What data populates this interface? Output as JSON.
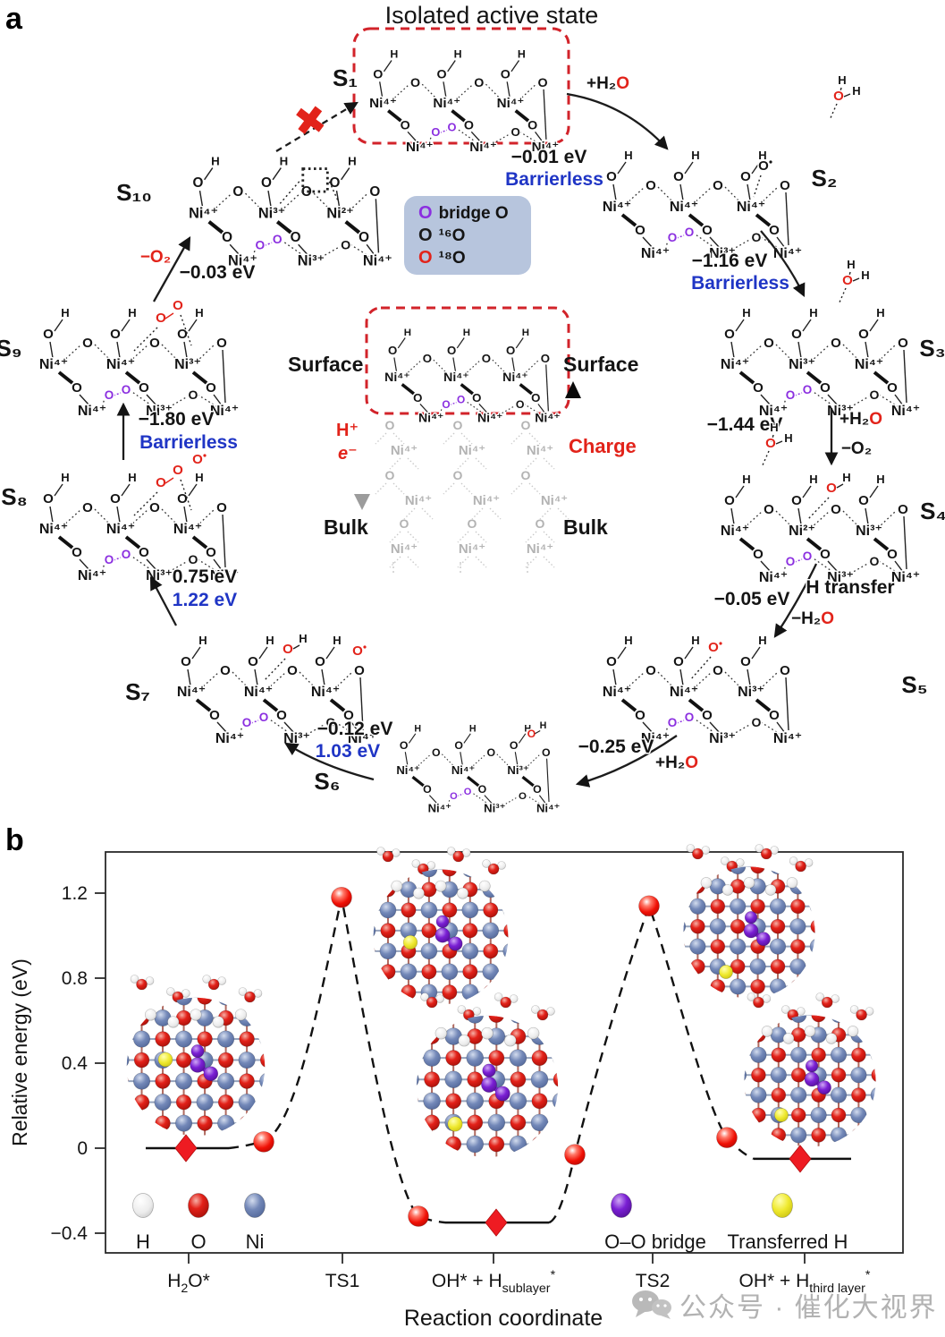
{
  "figure": {
    "panel_a_label": "a",
    "panel_b_label": "b"
  },
  "panel_a": {
    "title": "Isolated active state",
    "blocked_icon": "✖",
    "oxygen_glyph": "O",
    "hydrogen_glyph": "H",
    "bridge_oo_glyph": [
      "O",
      "O"
    ],
    "states": [
      {
        "label": "S₁",
        "top": [
          "Ni⁴⁺",
          "Ni⁴⁺",
          "Ni⁴⁺"
        ],
        "bottom": [
          "Ni⁴⁺",
          "Ni⁴⁺",
          "Ni⁴⁺"
        ],
        "boxed": true,
        "extras": []
      },
      {
        "label": "S₂",
        "top": [
          "Ni⁴⁺",
          "Ni⁴⁺",
          "Ni⁴⁺"
        ],
        "bottom": [
          "Ni⁴⁺",
          "Ni³⁺",
          "Ni⁴⁺"
        ],
        "extras": [
          "radical-o"
        ]
      },
      {
        "label": "S₃",
        "top": [
          "Ni⁴⁺",
          "Ni³⁺",
          "Ni⁴⁺"
        ],
        "bottom": [
          "Ni⁴⁺",
          "Ni³⁺",
          "Ni⁴⁺"
        ],
        "extras": []
      },
      {
        "label": "S₄",
        "top": [
          "Ni⁴⁺",
          "Ni²⁺",
          "Ni³⁺"
        ],
        "bottom": [
          "Ni⁴⁺",
          "Ni³⁺",
          "Ni⁴⁺"
        ],
        "extras": [
          "red-oh-mid"
        ]
      },
      {
        "label": "S₅",
        "top": [
          "Ni⁴⁺",
          "Ni⁴⁺",
          "Ni³⁺"
        ],
        "bottom": [
          "Ni⁴⁺",
          "Ni³⁺",
          "Ni⁴⁺"
        ],
        "extras": [
          "red-o-mid"
        ]
      },
      {
        "label": "S₆",
        "top": [
          "Ni⁴⁺",
          "Ni⁴⁺",
          "Ni³⁺"
        ],
        "bottom": [
          "Ni⁴⁺",
          "Ni³⁺",
          "Ni⁴⁺"
        ],
        "extras": [
          "red-oh-right"
        ]
      },
      {
        "label": "S₇",
        "top": [
          "Ni⁴⁺",
          "Ni⁴⁺",
          "Ni⁴⁺"
        ],
        "bottom": [
          "Ni⁴⁺",
          "Ni³⁺",
          "Ni⁴⁺"
        ],
        "extras": [
          "red-oh-mid",
          "red-o-right"
        ]
      },
      {
        "label": "S₈",
        "top": [
          "Ni⁴⁺",
          "Ni⁴⁺",
          "Ni⁴⁺"
        ],
        "bottom": [
          "Ni⁴⁺",
          "Ni³⁺",
          "Ni⁴⁺"
        ],
        "extras": [
          "red-oo",
          "red-o-above"
        ]
      },
      {
        "label": "S₉",
        "top": [
          "Ni⁴⁺",
          "Ni⁴⁺",
          "Ni³⁺"
        ],
        "bottom": [
          "Ni⁴⁺",
          "Ni³⁺",
          "Ni⁴⁺"
        ],
        "extras": [
          "red-oo"
        ]
      },
      {
        "label": "S₁₀",
        "top": [
          "Ni⁴⁺",
          "Ni³⁺",
          "Ni²⁺"
        ],
        "bottom": [
          "Ni⁴⁺",
          "Ni³⁺",
          "Ni⁴⁺"
        ],
        "extras": [
          "vacancy"
        ]
      }
    ],
    "transitions": [
      {
        "from": "S₁",
        "to": "S₂",
        "reagent": [
          {
            "t": "+H₂"
          },
          {
            "t": "O",
            "color": "#e2231a"
          }
        ],
        "energy": "−0.01 eV",
        "note": "Barrierless"
      },
      {
        "from": "S₂",
        "to": "S₃",
        "energy": "−1.16 eV",
        "note": "Barrierless"
      },
      {
        "from": "S₃",
        "to": "S₄",
        "energy": "−1.44 eV",
        "reagent": [
          {
            "t": "+H₂"
          },
          {
            "t": "O",
            "color": "#e2231a"
          }
        ],
        "reagent2": [
          {
            "t": "−O₂"
          }
        ]
      },
      {
        "from": "S₄",
        "to": "S₅",
        "energy": "−0.05 eV",
        "note": "H transfer",
        "reagent": [
          {
            "t": "−H₂"
          },
          {
            "t": "O",
            "color": "#e2231a"
          }
        ]
      },
      {
        "from": "S₅",
        "to": "S₆",
        "energy": "−0.25 eV",
        "reagent": [
          {
            "t": "+H₂"
          },
          {
            "t": "O",
            "color": "#e2231a"
          }
        ]
      },
      {
        "from": "S₆",
        "to": "S₇",
        "energy": "−0.12 eV",
        "barrier": "1.03 eV"
      },
      {
        "from": "S₇",
        "to": "S₈",
        "energy": "0.75 eV",
        "barrier": "1.22 eV"
      },
      {
        "from": "S₈",
        "to": "S₉",
        "energy": "−1.80 eV",
        "note": "Barrierless"
      },
      {
        "from": "S₉",
        "to": "S₁₀",
        "energy": "−0.03 eV",
        "reagent": [
          {
            "t": "−O₂",
            "color": "#e2231a"
          }
        ]
      },
      {
        "from": "S₁₀",
        "to": "S₁",
        "blocked": true
      }
    ],
    "legend_box": {
      "items": [
        {
          "symbol": "O",
          "color": "#8b2fe0",
          "label": "bridge O"
        },
        {
          "symbol": "O",
          "color": "#1a1a1a",
          "label": "¹⁶O"
        },
        {
          "symbol": "O",
          "color": "#e2231a",
          "label": "¹⁸O"
        }
      ]
    },
    "center": {
      "surface_left": "Surface",
      "surface_right": "Surface",
      "bulk_left": "Bulk",
      "bulk_right": "Bulk",
      "proton": "H⁺",
      "electron": "e⁻",
      "charge": "Charge"
    }
  },
  "panel_b": {
    "chart_data": {
      "type": "line",
      "style": "reaction-energy-profile",
      "xlabel": "Reaction coordinate",
      "ylabel": "Relative energy (eV)",
      "yticks": [
        "1.2",
        "0.8",
        "0.4",
        "0",
        "−0.4"
      ],
      "ytick_values": [
        1.2,
        0.8,
        0.4,
        0,
        -0.4
      ],
      "ylim": [
        -0.5,
        1.38
      ],
      "grid": false,
      "line_style": "dashed",
      "marker_color": "#e8170e",
      "x_categories": [
        {
          "parts": [
            {
              "t": "H"
            },
            {
              "t": "2",
              "sub": true
            },
            {
              "t": "O*"
            }
          ]
        },
        {
          "parts": [
            {
              "t": "TS1"
            }
          ]
        },
        {
          "parts": [
            {
              "t": "OH* + H"
            },
            {
              "t": "sublayer",
              "sub": true
            },
            {
              "t": "*",
              "sup": true
            }
          ]
        },
        {
          "parts": [
            {
              "t": "TS2"
            }
          ]
        },
        {
          "parts": [
            {
              "t": "OH* + H"
            },
            {
              "t": "third layer",
              "sub": true
            },
            {
              "t": "*",
              "sup": true
            }
          ]
        }
      ],
      "points": [
        {
          "at": "H2O*",
          "y": 0.0,
          "marker": "diamond"
        },
        {
          "y": 0.03,
          "marker": "sphere"
        },
        {
          "at": "TS1",
          "y": 1.18,
          "marker": "sphere"
        },
        {
          "y": -0.32,
          "marker": "sphere"
        },
        {
          "at": "OH* + H(sublayer)*",
          "y": -0.35,
          "marker": "diamond"
        },
        {
          "y": -0.03,
          "marker": "sphere"
        },
        {
          "at": "TS2",
          "y": 1.14,
          "marker": "sphere"
        },
        {
          "y": 0.05,
          "marker": "sphere"
        },
        {
          "at": "OH* + H(third layer)*",
          "y": -0.05,
          "marker": "diamond"
        }
      ],
      "legend": [
        {
          "label": "H",
          "color": "#f5f5f5"
        },
        {
          "label": "O",
          "color": "#e32119"
        },
        {
          "label": "Ni",
          "color": "#7388b8"
        },
        {
          "label": "O–O bridge",
          "color": "#7a1fd4"
        },
        {
          "label": "Transferred H",
          "color": "#efe92e"
        }
      ],
      "legend_position": "bottom-inside"
    },
    "watermark": {
      "text": "公众号 · 催化大视界"
    }
  },
  "colors": {
    "red": "#e2231a",
    "blue": "#1f35c5",
    "purple": "#8b2fe0",
    "legend_bg": "#b7c5dd",
    "ni_sphere": "#7388b8",
    "o_sphere": "#e32119",
    "h_sphere": "#f5f5f5",
    "oo_bridge": "#7a1fd4",
    "transferred_h": "#efe92e"
  }
}
